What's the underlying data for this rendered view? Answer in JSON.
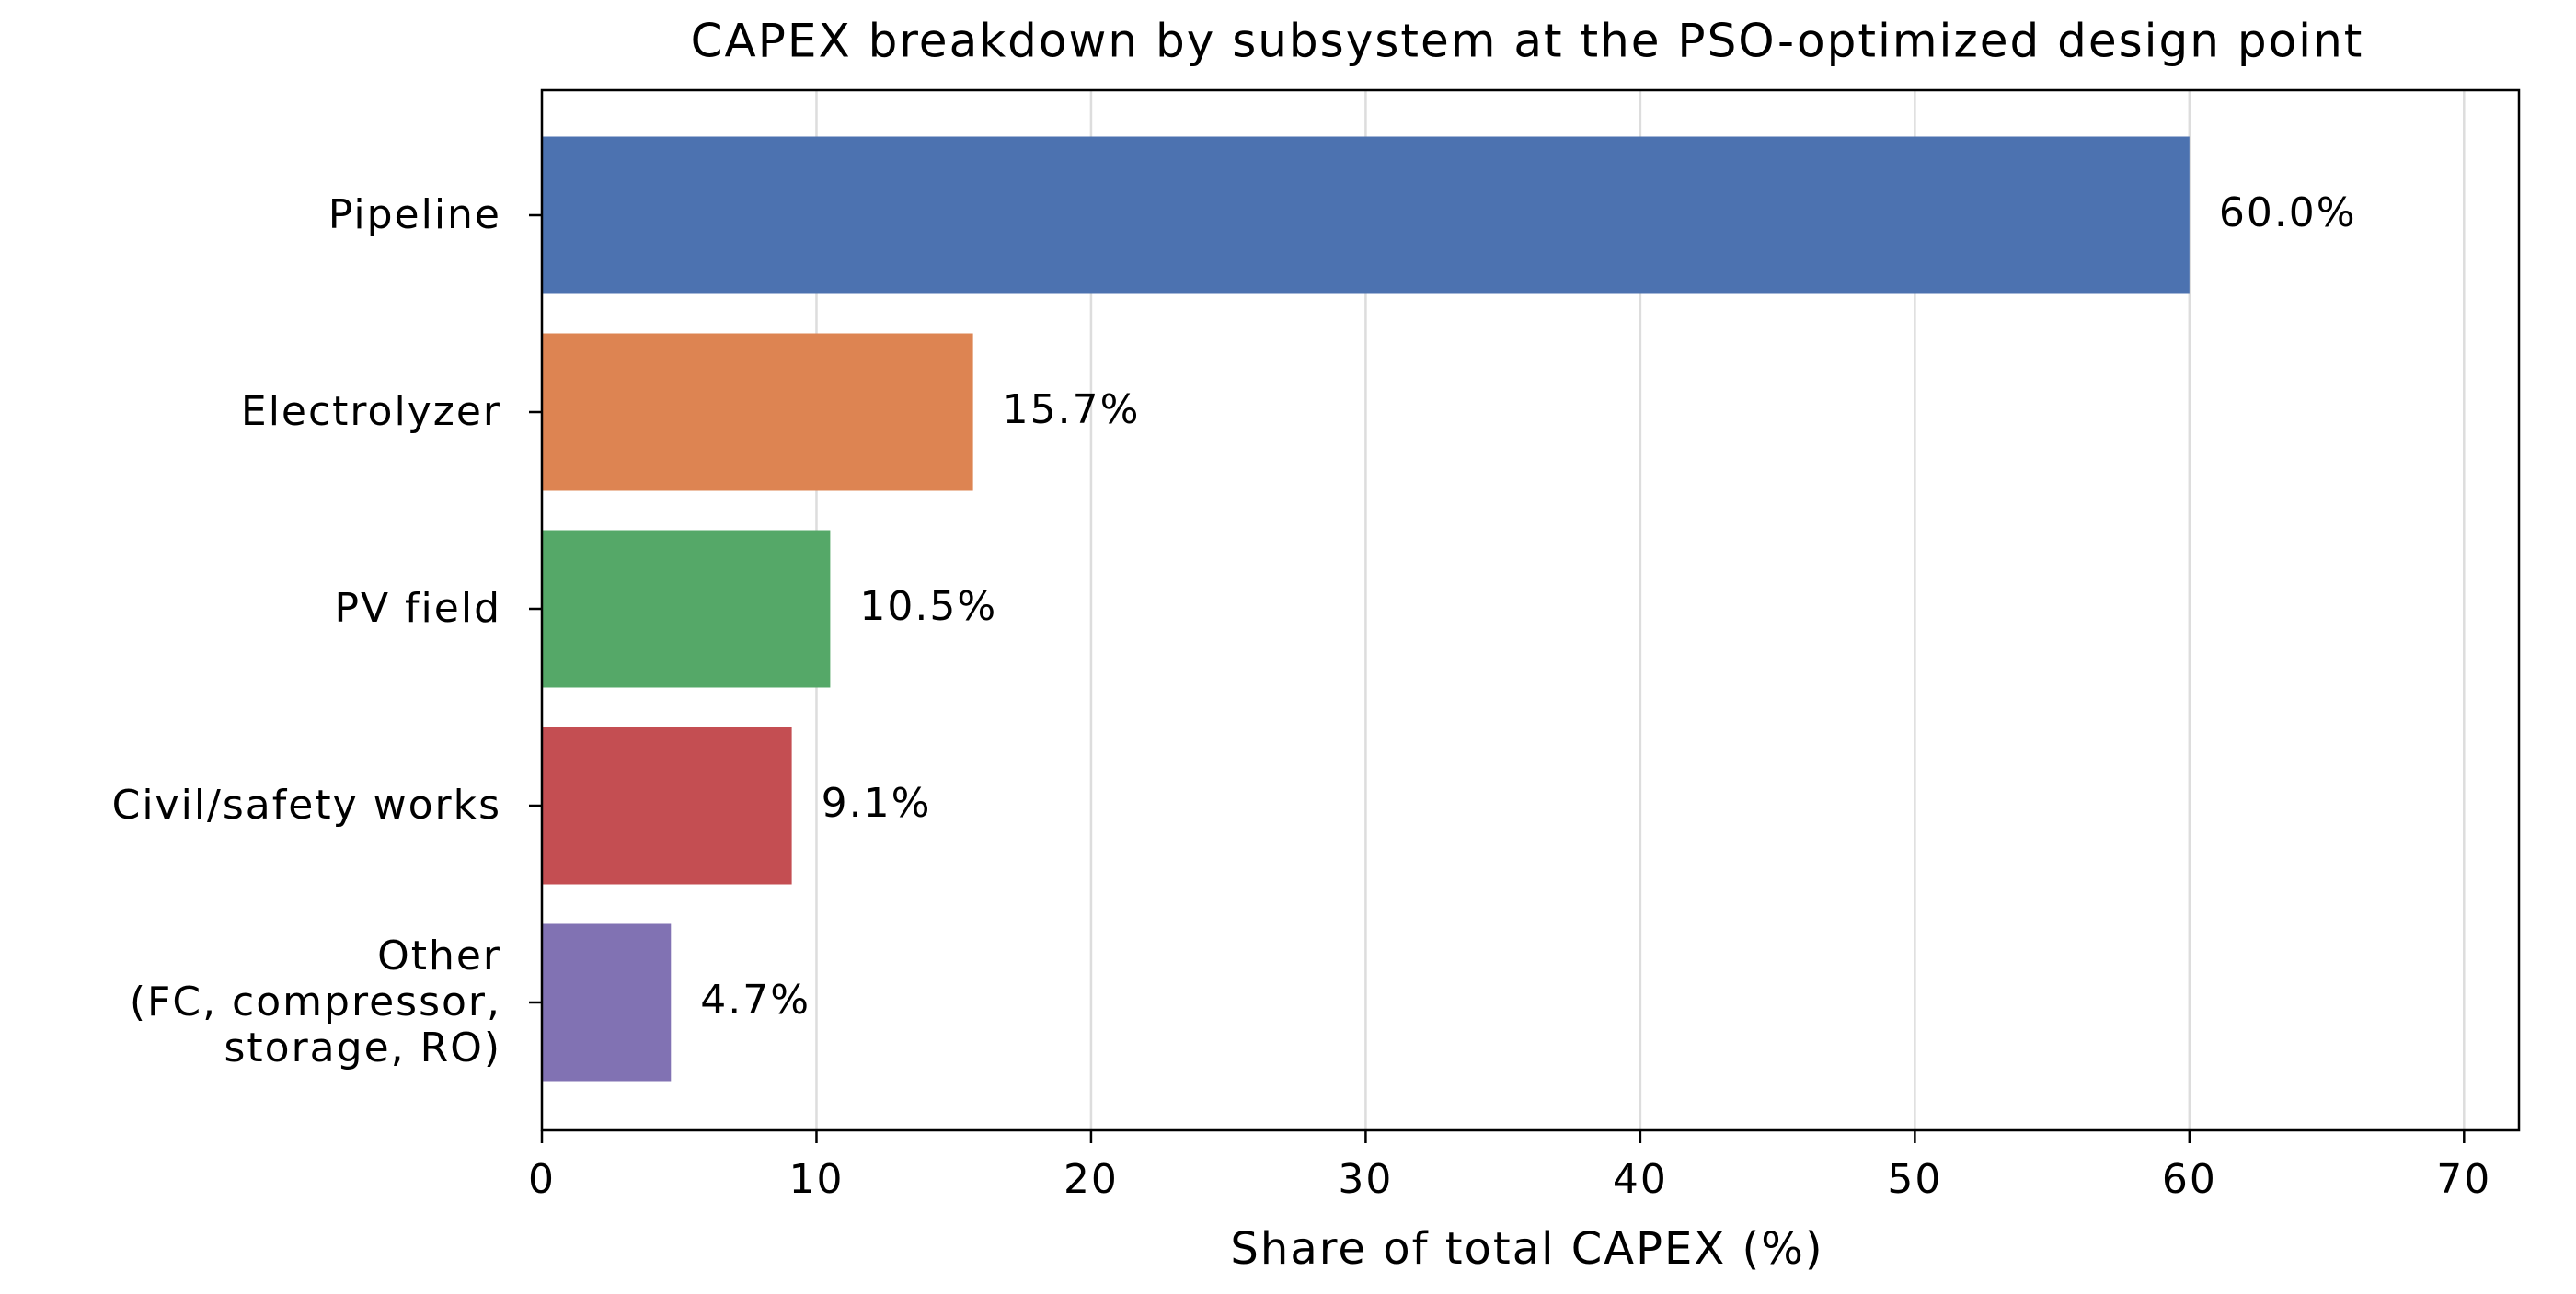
{
  "chart_data": {
    "type": "barh",
    "title": "CAPEX breakdown by subsystem at the PSO-optimized design point",
    "xlabel": "Share of total CAPEX (%)",
    "categories": [
      "Pipeline",
      "Electrolyzer",
      "PV field",
      "Civil/safety works",
      "Other\n(FC, compressor,\nstorage, RO)"
    ],
    "values": [
      60.0,
      15.7,
      10.5,
      9.1,
      4.7
    ],
    "value_labels": [
      "60.0%",
      "15.7%",
      "10.5%",
      "9.1%",
      "4.7%"
    ],
    "colors": [
      "#4c72b0",
      "#dd8452",
      "#55a868",
      "#c44e52",
      "#8172b3"
    ],
    "xlim": [
      0,
      72
    ],
    "xticks": [
      0,
      10,
      20,
      30,
      40,
      50,
      60,
      70
    ],
    "grid": true
  }
}
